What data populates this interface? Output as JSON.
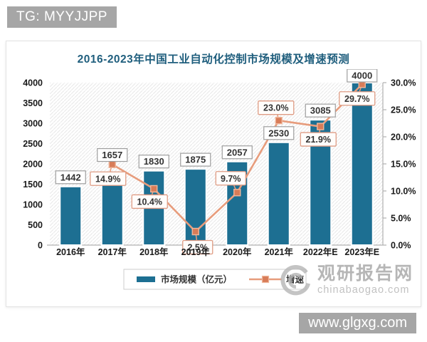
{
  "page": {
    "top_badge": "TG: MYYJJPP",
    "bottom_badge": "www.glgxg.com"
  },
  "watermark": {
    "site_name": "观研报告网",
    "site_url": "chinabaogao.com"
  },
  "colors": {
    "bar": "#1d6f92",
    "line": "#e79c7c",
    "marker_fill": "#d87c58",
    "marker_edge": "#f0b79c",
    "title": "#1f5e7d",
    "value_box_border": "#9e9e9e",
    "pct_box_border": "#df9c84",
    "pct_box_fill": "#fffdfb",
    "axis_line": "#b0b0b0",
    "axis_text": "#1a1a1a",
    "hatch": "#e9e9e9",
    "badge_bg": "#a6a6a6",
    "badge_text": "#ffffff",
    "watermark_gray": "#a5a5a5"
  },
  "chart_data": {
    "type": "bar",
    "combo": "bar+line",
    "title": "2016-2023年中国工业自动化控制市场规模及增速预测",
    "categories": [
      "2016年",
      "2017年",
      "2018年",
      "2019年",
      "2020年",
      "2021年",
      "2022年E",
      "2023年E"
    ],
    "series": [
      {
        "name": "市场规模（亿元）",
        "type": "bar",
        "axis": "left",
        "values": [
          1442,
          1657,
          1830,
          1875,
          2057,
          2530,
          3085,
          4000
        ]
      },
      {
        "name": "增速",
        "type": "line",
        "axis": "right",
        "values": [
          null,
          14.9,
          10.4,
          2.5,
          9.7,
          23.0,
          21.9,
          29.7
        ],
        "labels": [
          "",
          "14.9%",
          "10.4%",
          "2.5%",
          "9.7%",
          "23.0%",
          "21.9%",
          "29.7%"
        ]
      }
    ],
    "left_axis": {
      "min": 0,
      "max": 4000,
      "ticks": [
        "0",
        "500",
        "1000",
        "1500",
        "2000",
        "2500",
        "3000",
        "3500",
        "4000"
      ]
    },
    "right_axis": {
      "min": 0,
      "max": 30,
      "ticks": [
        "0.0%",
        "5.0%",
        "10.0%",
        "15.0%",
        "20.0%",
        "25.0%",
        "30.0%"
      ]
    },
    "legend_position": "bottom",
    "grid": false
  }
}
